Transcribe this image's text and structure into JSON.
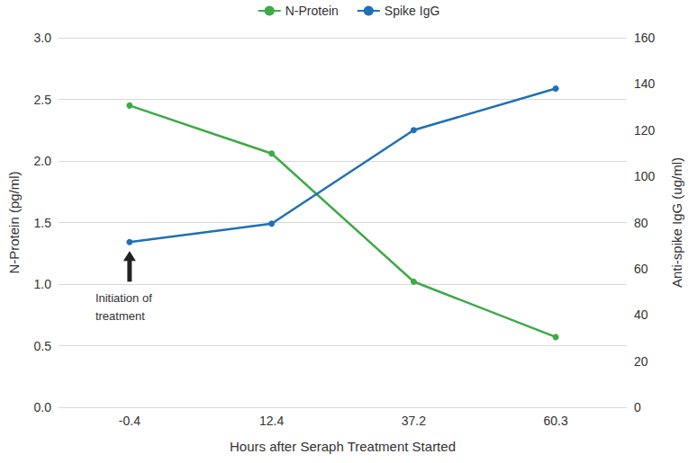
{
  "chart_data": {
    "type": "line",
    "categories": [
      "-0.4",
      "12.4",
      "37.2",
      "60.3"
    ],
    "x_label": "Hours after Seraph Treatment Started",
    "y_label": "N-Protein (pg/ml)",
    "y2_label": "Anti-spike IgG (ug/ml)",
    "series": [
      {
        "name": "N-Protein",
        "color": "#3daa47",
        "values": [
          2.45,
          2.06,
          1.02,
          0.57
        ],
        "marker": "circle"
      },
      {
        "name": "Spike IgG",
        "color": "#1f70b6",
        "values": [
          71.5,
          79.5,
          120,
          138
        ],
        "axis": "y2",
        "marker": "circle"
      }
    ],
    "ylim": [
      0,
      3
    ],
    "yticks": [
      {
        "value": 0,
        "label": "0.0"
      },
      0.5,
      {
        "value": 1,
        "label": "1.0"
      },
      1.5,
      {
        "value": 2,
        "label": "2.0"
      },
      2.5,
      {
        "value": 3,
        "label": "3.0"
      }
    ],
    "y2lim": [
      0,
      160
    ],
    "y2ticks": [
      0,
      20,
      40,
      60,
      80,
      100,
      120,
      140,
      160
    ],
    "annotations": [
      {
        "text": "Initiation of treatment",
        "x": "-0.4"
      }
    ],
    "grid": true,
    "legend": "top"
  }
}
